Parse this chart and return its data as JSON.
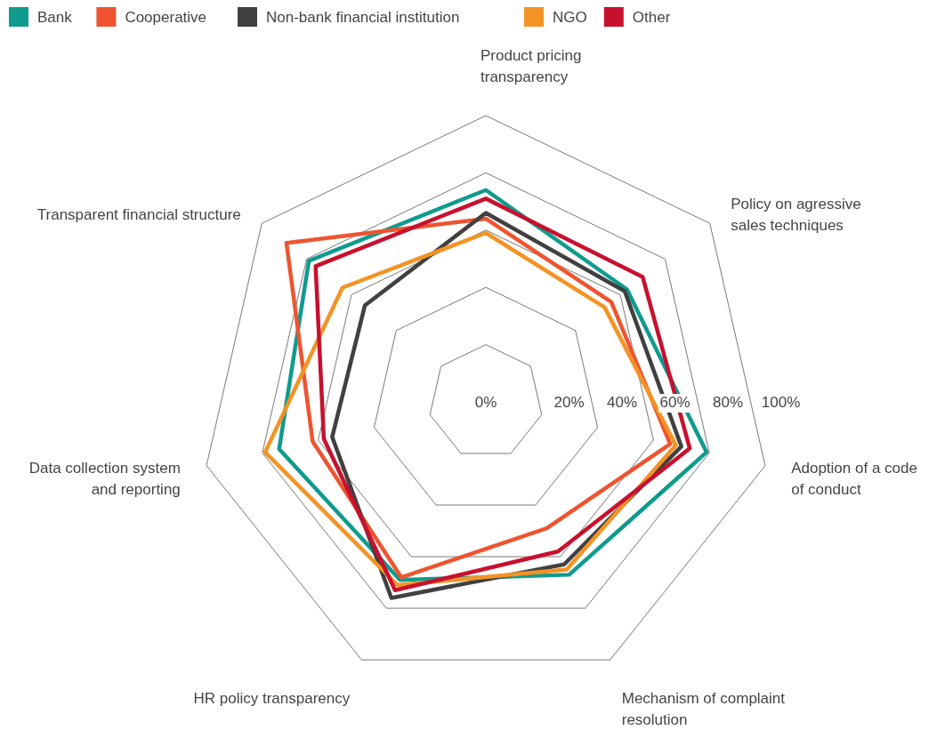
{
  "chart_data": {
    "type": "radar",
    "categories": [
      "Product pricing\ntransparency",
      "Policy on agressive\nsales techniques",
      "Adoption of a code\nof conduct",
      "Mechanism of complaint\nresolution",
      "HR policy transparency",
      "Data collection system\nand reporting",
      "Transparent financial structure"
    ],
    "series": [
      {
        "name": "Bank",
        "color": "#0f9b8e",
        "values": [
          74,
          63,
          79,
          67,
          69,
          74,
          79
        ]
      },
      {
        "name": "Cooperative",
        "color": "#ee5430",
        "values": [
          64,
          56,
          66,
          49,
          68,
          62,
          89
        ]
      },
      {
        "name": "Non-bank financial institution",
        "color": "#404040",
        "values": [
          66,
          62,
          70,
          63,
          76,
          55,
          54
        ]
      },
      {
        "name": "NGO",
        "color": "#f39325",
        "values": [
          59,
          53,
          68,
          65,
          71,
          79,
          64
        ]
      },
      {
        "name": "Other",
        "color": "#c8102e",
        "values": [
          71,
          70,
          73,
          58,
          73,
          58,
          76
        ]
      }
    ],
    "ylim": [
      0,
      100
    ],
    "yticks": [
      {
        "value": 0,
        "label": "0%"
      },
      {
        "value": 20,
        "label": "20%"
      },
      {
        "value": 40,
        "label": "40%"
      },
      {
        "value": 60,
        "label": "60%"
      },
      {
        "value": 80,
        "label": "80%"
      },
      {
        "value": 100,
        "label": "100%"
      }
    ],
    "grid": true,
    "legend": "top"
  }
}
